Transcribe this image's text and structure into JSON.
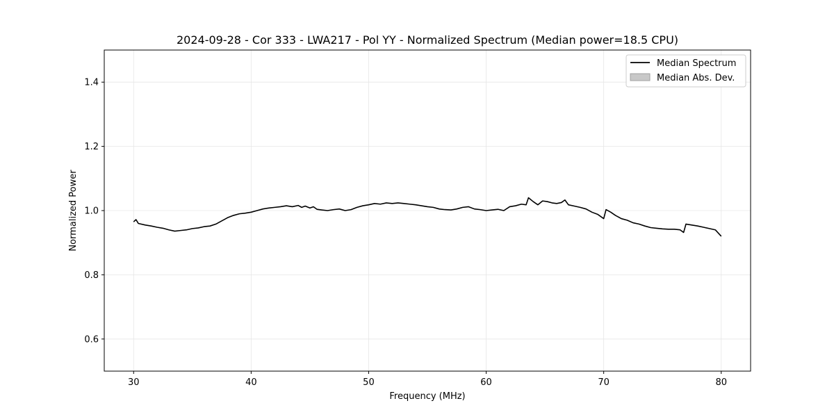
{
  "chart_data": {
    "type": "line",
    "title": "2024-09-28 - Cor 333 - LWA217 - Pol YY - Normalized Spectrum (Median power=18.5 CPU)",
    "xlabel": "Frequency (MHz)",
    "ylabel": "Normalized Power",
    "xlim": [
      27.5,
      82.5
    ],
    "ylim": [
      0.5,
      1.5
    ],
    "xticks": [
      30,
      40,
      50,
      60,
      70,
      80
    ],
    "yticks": [
      0.6,
      0.8,
      1.0,
      1.2,
      1.4
    ],
    "xtick_labels": [
      "30",
      "40",
      "50",
      "60",
      "70",
      "80"
    ],
    "ytick_labels": [
      "0.6",
      "0.8",
      "1.0",
      "1.2",
      "1.4"
    ],
    "grid": true,
    "legend_position": "top-right",
    "series": [
      {
        "name": "Median Spectrum",
        "color": "#000000",
        "x": [
          30.0,
          30.2,
          30.4,
          31.0,
          31.5,
          32.0,
          32.5,
          33.0,
          33.5,
          34.0,
          34.5,
          35.0,
          35.5,
          36.0,
          36.5,
          37.0,
          37.5,
          38.0,
          38.5,
          39.0,
          39.5,
          40.0,
          40.5,
          41.0,
          41.5,
          42.0,
          42.5,
          43.0,
          43.5,
          44.0,
          44.3,
          44.6,
          45.0,
          45.3,
          45.6,
          46.0,
          46.5,
          47.0,
          47.5,
          48.0,
          48.5,
          49.0,
          49.5,
          50.0,
          50.5,
          51.0,
          51.5,
          52.0,
          52.5,
          53.0,
          53.5,
          54.0,
          54.5,
          55.0,
          55.5,
          56.0,
          56.5,
          57.0,
          57.5,
          58.0,
          58.5,
          59.0,
          59.5,
          60.0,
          60.5,
          61.0,
          61.5,
          62.0,
          62.5,
          63.0,
          63.4,
          63.6,
          64.0,
          64.4,
          64.8,
          65.2,
          65.6,
          66.0,
          66.4,
          66.7,
          67.0,
          67.5,
          68.0,
          68.5,
          69.0,
          69.5,
          70.0,
          70.2,
          70.6,
          71.0,
          71.5,
          72.0,
          72.5,
          73.0,
          73.5,
          74.0,
          74.5,
          75.0,
          75.5,
          76.0,
          76.5,
          76.8,
          77.0,
          77.5,
          78.0,
          78.5,
          79.0,
          79.5,
          80.0
        ],
        "values": [
          0.965,
          0.972,
          0.96,
          0.955,
          0.952,
          0.948,
          0.945,
          0.94,
          0.936,
          0.938,
          0.94,
          0.944,
          0.946,
          0.95,
          0.952,
          0.958,
          0.968,
          0.978,
          0.985,
          0.99,
          0.992,
          0.995,
          1.0,
          1.005,
          1.008,
          1.01,
          1.012,
          1.015,
          1.012,
          1.016,
          1.01,
          1.014,
          1.008,
          1.012,
          1.004,
          1.002,
          1.0,
          1.003,
          1.005,
          1.0,
          1.003,
          1.01,
          1.015,
          1.018,
          1.022,
          1.02,
          1.024,
          1.022,
          1.024,
          1.022,
          1.02,
          1.018,
          1.015,
          1.012,
          1.01,
          1.005,
          1.003,
          1.002,
          1.005,
          1.01,
          1.012,
          1.005,
          1.003,
          1.0,
          1.002,
          1.004,
          1.0,
          1.012,
          1.015,
          1.02,
          1.018,
          1.04,
          1.028,
          1.018,
          1.03,
          1.028,
          1.024,
          1.022,
          1.025,
          1.033,
          1.018,
          1.014,
          1.01,
          1.005,
          0.995,
          0.988,
          0.975,
          1.003,
          0.995,
          0.985,
          0.975,
          0.97,
          0.962,
          0.958,
          0.952,
          0.947,
          0.945,
          0.943,
          0.942,
          0.942,
          0.94,
          0.932,
          0.958,
          0.955,
          0.952,
          0.948,
          0.944,
          0.94,
          0.92
        ]
      }
    ],
    "legend": [
      {
        "label": "Median Spectrum",
        "style": "line",
        "color": "#000000"
      },
      {
        "label": "Median Abs. Dev.",
        "style": "patch",
        "color": "#c8c8c8"
      }
    ]
  }
}
